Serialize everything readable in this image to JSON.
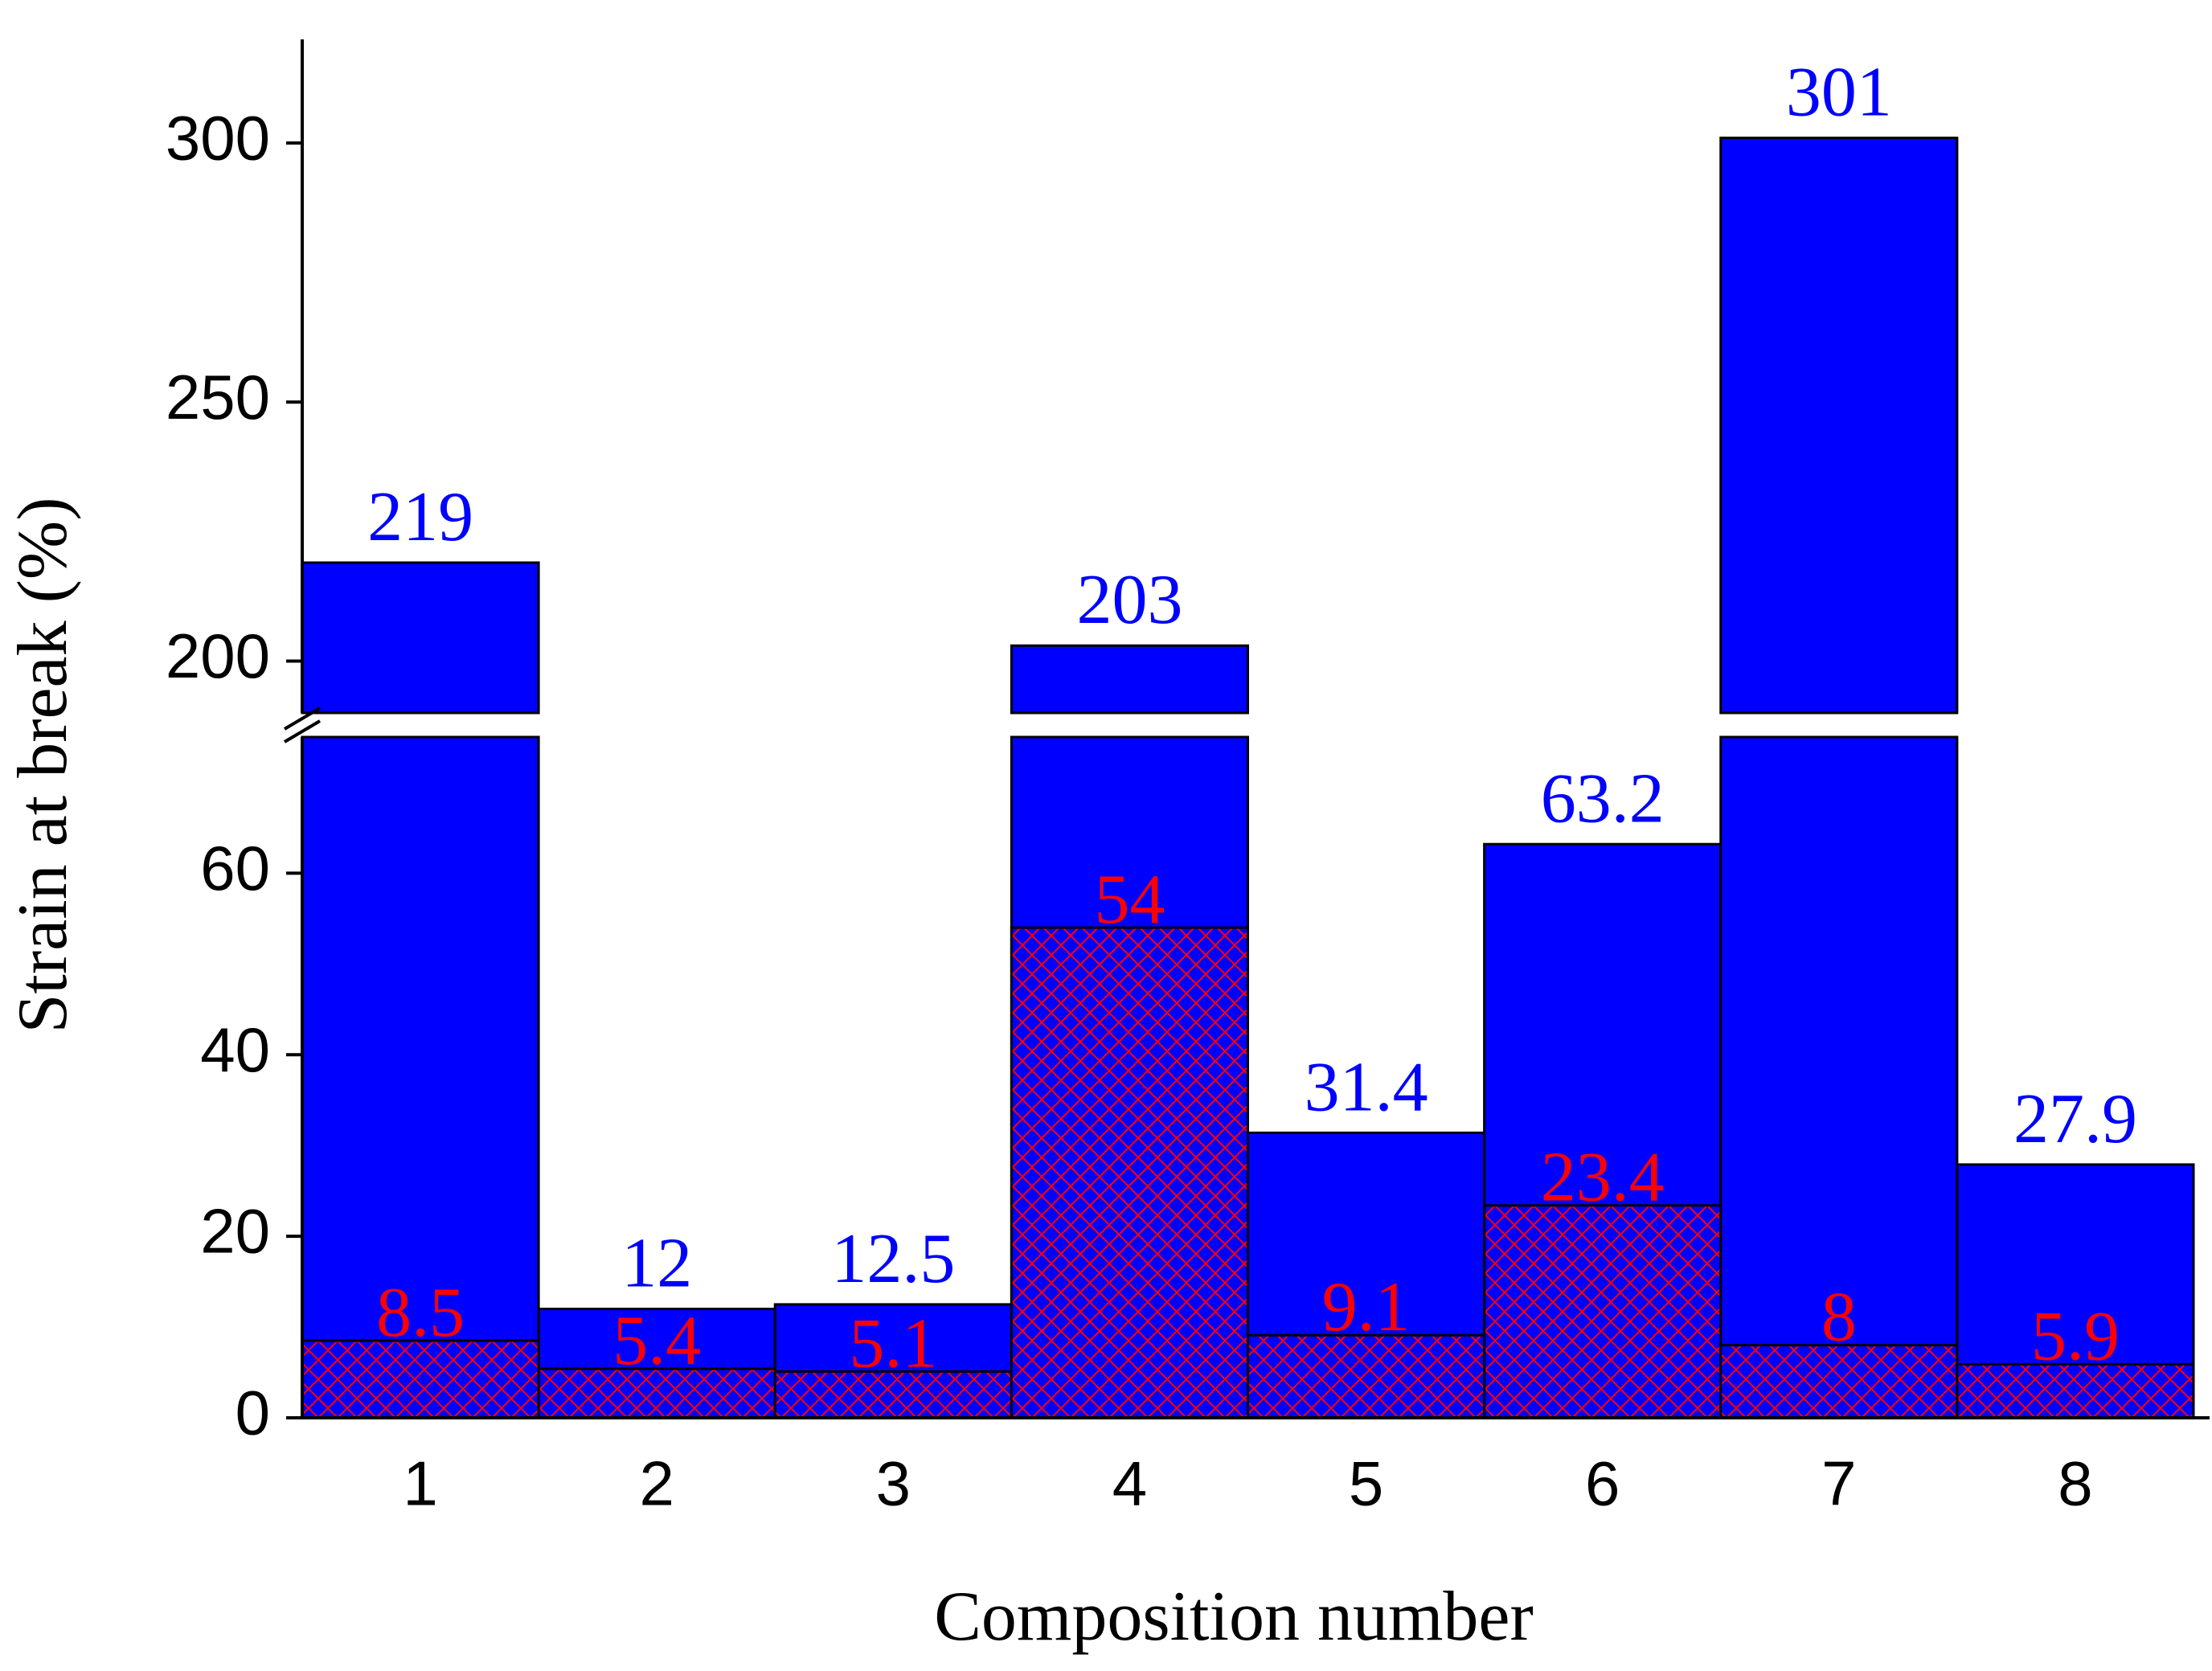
{
  "chart_data": {
    "type": "bar",
    "x_label": "Composition number",
    "y_label": "Strain at break (%)",
    "categories": [
      "1",
      "2",
      "3",
      "4",
      "5",
      "6",
      "7",
      "8"
    ],
    "series": [
      {
        "color": "#0000ff",
        "values": [
          219,
          12,
          12.5,
          203,
          31.4,
          63.2,
          301,
          27.9
        ]
      },
      {
        "color": "#ff0000",
        "values": [
          8.5,
          5.4,
          5.1,
          54,
          9.1,
          23.4,
          8,
          5.9
        ]
      }
    ],
    "ylim": [
      0,
      320
    ],
    "y_break": [
      75,
      190
    ],
    "yticks": [
      0,
      20,
      40,
      60,
      200,
      250,
      300
    ]
  }
}
